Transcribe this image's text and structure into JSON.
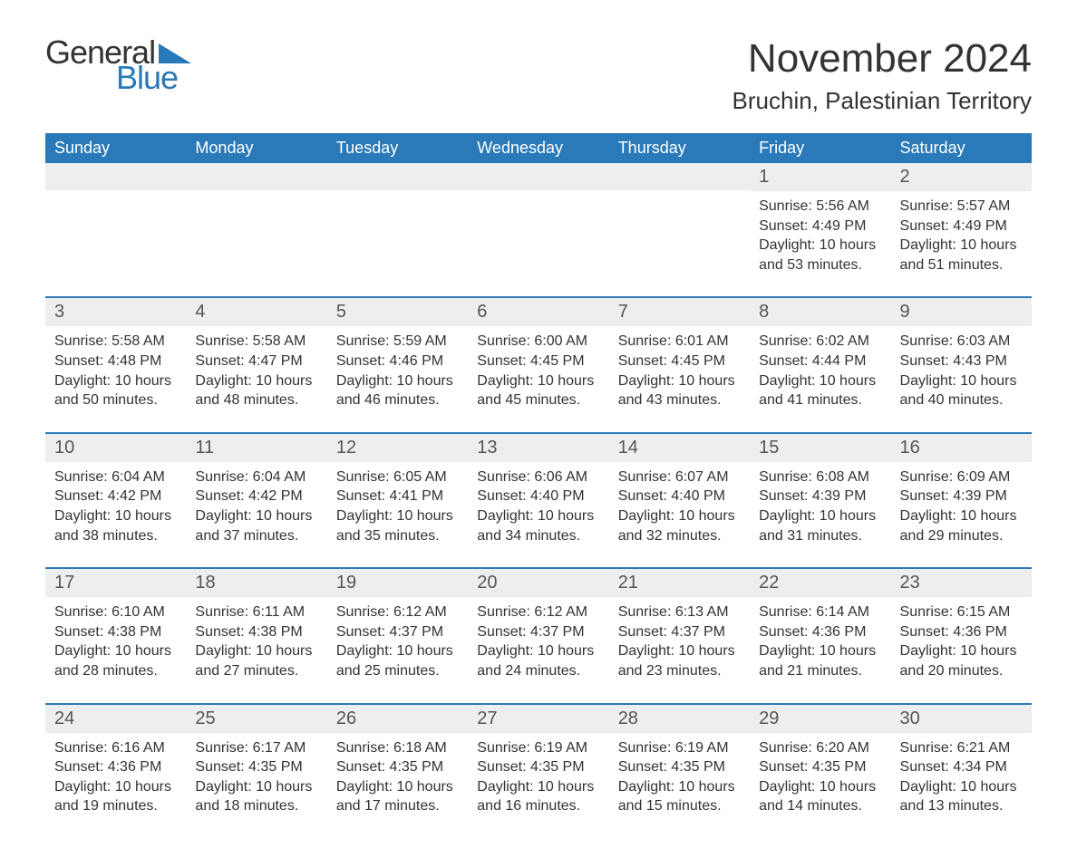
{
  "logo": {
    "text_general": "General",
    "text_blue": "Blue",
    "triangle_color": "#2a7ab9"
  },
  "header": {
    "month_title": "November 2024",
    "location": "Bruchin, Palestinian Territory"
  },
  "colors": {
    "header_bg": "#2a7ab9",
    "header_text": "#ffffff",
    "daynum_bg": "#eeeeee",
    "body_bg": "#ffffff",
    "text": "#333333",
    "week_border": "#2a7ab9"
  },
  "day_headers": [
    "Sunday",
    "Monday",
    "Tuesday",
    "Wednesday",
    "Thursday",
    "Friday",
    "Saturday"
  ],
  "labels": {
    "sunrise": "Sunrise:",
    "sunset": "Sunset:",
    "daylight": "Daylight:"
  },
  "weeks": [
    [
      {
        "empty": true
      },
      {
        "empty": true
      },
      {
        "empty": true
      },
      {
        "empty": true
      },
      {
        "empty": true
      },
      {
        "day": "1",
        "sunrise": "5:56 AM",
        "sunset": "4:49 PM",
        "daylight": "10 hours and 53 minutes."
      },
      {
        "day": "2",
        "sunrise": "5:57 AM",
        "sunset": "4:49 PM",
        "daylight": "10 hours and 51 minutes."
      }
    ],
    [
      {
        "day": "3",
        "sunrise": "5:58 AM",
        "sunset": "4:48 PM",
        "daylight": "10 hours and 50 minutes."
      },
      {
        "day": "4",
        "sunrise": "5:58 AM",
        "sunset": "4:47 PM",
        "daylight": "10 hours and 48 minutes."
      },
      {
        "day": "5",
        "sunrise": "5:59 AM",
        "sunset": "4:46 PM",
        "daylight": "10 hours and 46 minutes."
      },
      {
        "day": "6",
        "sunrise": "6:00 AM",
        "sunset": "4:45 PM",
        "daylight": "10 hours and 45 minutes."
      },
      {
        "day": "7",
        "sunrise": "6:01 AM",
        "sunset": "4:45 PM",
        "daylight": "10 hours and 43 minutes."
      },
      {
        "day": "8",
        "sunrise": "6:02 AM",
        "sunset": "4:44 PM",
        "daylight": "10 hours and 41 minutes."
      },
      {
        "day": "9",
        "sunrise": "6:03 AM",
        "sunset": "4:43 PM",
        "daylight": "10 hours and 40 minutes."
      }
    ],
    [
      {
        "day": "10",
        "sunrise": "6:04 AM",
        "sunset": "4:42 PM",
        "daylight": "10 hours and 38 minutes."
      },
      {
        "day": "11",
        "sunrise": "6:04 AM",
        "sunset": "4:42 PM",
        "daylight": "10 hours and 37 minutes."
      },
      {
        "day": "12",
        "sunrise": "6:05 AM",
        "sunset": "4:41 PM",
        "daylight": "10 hours and 35 minutes."
      },
      {
        "day": "13",
        "sunrise": "6:06 AM",
        "sunset": "4:40 PM",
        "daylight": "10 hours and 34 minutes."
      },
      {
        "day": "14",
        "sunrise": "6:07 AM",
        "sunset": "4:40 PM",
        "daylight": "10 hours and 32 minutes."
      },
      {
        "day": "15",
        "sunrise": "6:08 AM",
        "sunset": "4:39 PM",
        "daylight": "10 hours and 31 minutes."
      },
      {
        "day": "16",
        "sunrise": "6:09 AM",
        "sunset": "4:39 PM",
        "daylight": "10 hours and 29 minutes."
      }
    ],
    [
      {
        "day": "17",
        "sunrise": "6:10 AM",
        "sunset": "4:38 PM",
        "daylight": "10 hours and 28 minutes."
      },
      {
        "day": "18",
        "sunrise": "6:11 AM",
        "sunset": "4:38 PM",
        "daylight": "10 hours and 27 minutes."
      },
      {
        "day": "19",
        "sunrise": "6:12 AM",
        "sunset": "4:37 PM",
        "daylight": "10 hours and 25 minutes."
      },
      {
        "day": "20",
        "sunrise": "6:12 AM",
        "sunset": "4:37 PM",
        "daylight": "10 hours and 24 minutes."
      },
      {
        "day": "21",
        "sunrise": "6:13 AM",
        "sunset": "4:37 PM",
        "daylight": "10 hours and 23 minutes."
      },
      {
        "day": "22",
        "sunrise": "6:14 AM",
        "sunset": "4:36 PM",
        "daylight": "10 hours and 21 minutes."
      },
      {
        "day": "23",
        "sunrise": "6:15 AM",
        "sunset": "4:36 PM",
        "daylight": "10 hours and 20 minutes."
      }
    ],
    [
      {
        "day": "24",
        "sunrise": "6:16 AM",
        "sunset": "4:36 PM",
        "daylight": "10 hours and 19 minutes."
      },
      {
        "day": "25",
        "sunrise": "6:17 AM",
        "sunset": "4:35 PM",
        "daylight": "10 hours and 18 minutes."
      },
      {
        "day": "26",
        "sunrise": "6:18 AM",
        "sunset": "4:35 PM",
        "daylight": "10 hours and 17 minutes."
      },
      {
        "day": "27",
        "sunrise": "6:19 AM",
        "sunset": "4:35 PM",
        "daylight": "10 hours and 16 minutes."
      },
      {
        "day": "28",
        "sunrise": "6:19 AM",
        "sunset": "4:35 PM",
        "daylight": "10 hours and 15 minutes."
      },
      {
        "day": "29",
        "sunrise": "6:20 AM",
        "sunset": "4:35 PM",
        "daylight": "10 hours and 14 minutes."
      },
      {
        "day": "30",
        "sunrise": "6:21 AM",
        "sunset": "4:34 PM",
        "daylight": "10 hours and 13 minutes."
      }
    ]
  ]
}
